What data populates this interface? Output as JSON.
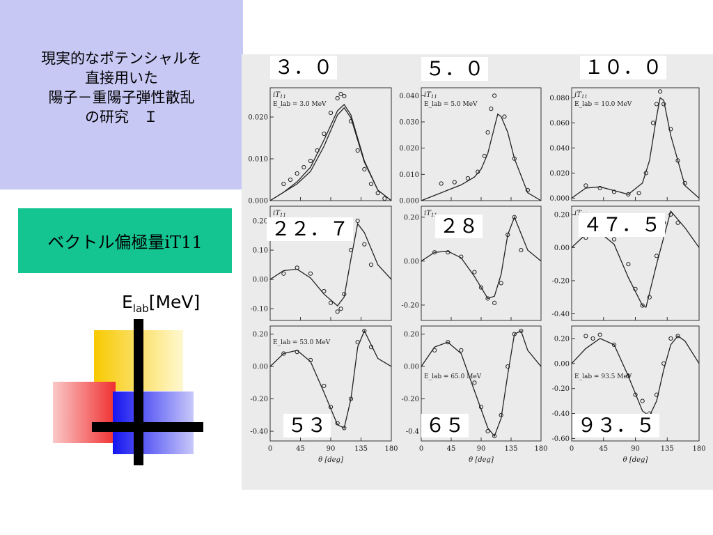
{
  "title": {
    "lines": [
      "現実的なポテンシャルを",
      "直接用いた",
      "陽子－重陽子弾性散乱",
      "の研究　Ｉ"
    ]
  },
  "subtitle": "ベクトル偏極量iT11",
  "energy_axis": {
    "symbol": "E",
    "sub": "lab",
    "unit": "[MeV]"
  },
  "panel_labels": [
    "３．０",
    "５．０",
    "１０．０",
    "２２．７",
    "２８",
    "４７．５",
    "５３",
    "６５",
    "９３．５"
  ],
  "figure_text": {
    "ylabel": "iT",
    "ylabel_sub": "11",
    "xlabel": "θ [deg]",
    "x_ticks": [
      "0",
      "45",
      "90",
      "135",
      "180"
    ],
    "insets": [
      "E_lab = 3.0 MeV",
      "E_lab = 5.0 MeV",
      "E_lab = 10.0 MeV",
      "E_lab = 53.0 MeV",
      "E_lab = 65.0 MeV",
      "E_lab = 93.5 MeV"
    ],
    "row_y_ticks": [
      [
        [
          "0.020",
          "0.010",
          "0.000"
        ],
        [
          "0.040",
          "0.030",
          "0.020",
          "0.010",
          "0.000"
        ],
        [
          "0.080",
          "0.060",
          "0.040",
          "0.020",
          "0.000"
        ]
      ],
      [
        [
          "0.20",
          "0.10",
          "0.00",
          "-0.10"
        ],
        [
          "0.20",
          "0.00",
          "-0.20"
        ],
        [
          "0.20",
          "0.00",
          "-0.20",
          "-0.40"
        ]
      ],
      [
        [
          "0.20",
          "0.00",
          "-0.20",
          "-0.40"
        ],
        [
          "0.20",
          "0.00",
          "-0.20",
          "-0.4"
        ],
        [
          "0.20",
          "0.00",
          "-0.20",
          "-0.40",
          "-0.60"
        ]
      ]
    ]
  },
  "colors": {
    "title_bg": "#c8c8f5",
    "subtitle_bg": "#14c591",
    "scan_bg": "#ebebeb",
    "deco_yellow": "#f7c900",
    "deco_red": "#f03030",
    "deco_blue": "#1414f0",
    "deco_bar": "#000000"
  },
  "chart_data": [
    {
      "type": "scatter",
      "energy_MeV": 3.0,
      "xlim": [
        0,
        180
      ],
      "ylim": [
        0,
        0.027
      ],
      "y_ticks": [
        0.0,
        0.01,
        0.02
      ],
      "series": [
        {
          "name": "",
          "x": [
            20,
            30,
            40,
            50,
            60,
            70,
            80,
            90,
            100,
            105,
            110,
            120,
            130,
            140,
            150,
            160,
            170
          ],
          "y": [
            0.004,
            0.005,
            0.0065,
            0.008,
            0.0095,
            0.012,
            0.016,
            0.021,
            0.0245,
            0.0255,
            0.025,
            0.019,
            0.012,
            0.0075,
            0.004,
            0.0018,
            0.0005
          ]
        }
      ],
      "curves": [
        {
          "x": [
            0,
            20,
            40,
            60,
            80,
            100,
            110,
            120,
            140,
            160,
            180
          ],
          "y": [
            0,
            0.002,
            0.0045,
            0.008,
            0.0145,
            0.0215,
            0.023,
            0.0205,
            0.0095,
            0.0025,
            0
          ]
        },
        {
          "x": [
            0,
            20,
            40,
            60,
            80,
            100,
            110,
            120,
            140,
            160,
            180
          ],
          "y": [
            0,
            0.002,
            0.004,
            0.007,
            0.013,
            0.0205,
            0.0222,
            0.0198,
            0.0092,
            0.0025,
            0
          ]
        }
      ]
    },
    {
      "type": "scatter",
      "energy_MeV": 5.0,
      "xlim": [
        0,
        180
      ],
      "ylim": [
        0,
        0.043
      ],
      "y_ticks": [
        0.0,
        0.01,
        0.02,
        0.03,
        0.04
      ],
      "series": [
        {
          "name": "",
          "x": [
            30,
            50,
            70,
            85,
            95,
            100,
            105,
            110,
            125,
            140,
            160
          ],
          "y": [
            0.0065,
            0.007,
            0.0085,
            0.011,
            0.017,
            0.026,
            0.035,
            0.04,
            0.032,
            0.016,
            0.004
          ]
        }
      ],
      "curves": [
        {
          "x": [
            0,
            20,
            40,
            60,
            80,
            90,
            100,
            110,
            115,
            120,
            130,
            140,
            160,
            180
          ],
          "y": [
            0,
            0.002,
            0.004,
            0.006,
            0.009,
            0.012,
            0.018,
            0.028,
            0.033,
            0.032,
            0.026,
            0.016,
            0.003,
            0
          ]
        }
      ]
    },
    {
      "type": "scatter",
      "energy_MeV": 10.0,
      "xlim": [
        0,
        180
      ],
      "ylim": [
        -0.002,
        0.088
      ],
      "y_ticks": [
        0.0,
        0.02,
        0.04,
        0.06,
        0.08
      ],
      "series": [
        {
          "name": "",
          "x": [
            20,
            40,
            60,
            80,
            95,
            105,
            115,
            120,
            125,
            130,
            140,
            150,
            160
          ],
          "y": [
            0.01,
            0.008,
            0.005,
            0.003,
            0.004,
            0.02,
            0.06,
            0.075,
            0.085,
            0.075,
            0.055,
            0.03,
            0.012
          ]
        }
      ],
      "curves": [
        {
          "x": [
            0,
            20,
            40,
            60,
            80,
            100,
            110,
            120,
            125,
            130,
            140,
            160,
            180
          ],
          "y": [
            0,
            0.008,
            0.009,
            0.006,
            0.003,
            0.012,
            0.03,
            0.065,
            0.08,
            0.078,
            0.05,
            0.01,
            0
          ]
        }
      ]
    },
    {
      "type": "scatter",
      "energy_MeV": 22.7,
      "xlim": [
        0,
        180
      ],
      "ylim": [
        -0.14,
        0.25
      ],
      "y_ticks": [
        -0.1,
        0.0,
        0.1,
        0.2
      ],
      "series": [
        {
          "name": "",
          "x": [
            20,
            40,
            60,
            80,
            90,
            100,
            105,
            110,
            120,
            130,
            140,
            150
          ],
          "y": [
            0.02,
            0.04,
            0.02,
            -0.04,
            -0.08,
            -0.11,
            -0.1,
            -0.05,
            0.1,
            0.2,
            0.12,
            0.05
          ]
        }
      ],
      "curves": [
        {
          "x": [
            0,
            20,
            40,
            60,
            80,
            100,
            110,
            120,
            130,
            140,
            160,
            180
          ],
          "y": [
            0,
            0.03,
            0.035,
            0.005,
            -0.05,
            -0.09,
            -0.06,
            0.07,
            0.19,
            0.16,
            0.05,
            0
          ]
        }
      ]
    },
    {
      "type": "scatter",
      "energy_MeV": 28,
      "xlim": [
        0,
        180
      ],
      "ylim": [
        -0.27,
        0.25
      ],
      "y_ticks": [
        -0.2,
        0.0,
        0.2
      ],
      "series": [
        {
          "name": "",
          "x": [
            20,
            40,
            60,
            80,
            90,
            100,
            110,
            120,
            130,
            140,
            150
          ],
          "y": [
            0.04,
            0.04,
            0.02,
            -0.05,
            -0.12,
            -0.17,
            -0.19,
            -0.1,
            0.12,
            0.2,
            0.05
          ]
        }
      ],
      "curves": [
        {
          "x": [
            0,
            20,
            40,
            60,
            80,
            100,
            110,
            120,
            130,
            140,
            160,
            180
          ],
          "y": [
            0,
            0.04,
            0.045,
            0.015,
            -0.07,
            -0.17,
            -0.16,
            -0.06,
            0.12,
            0.2,
            0.05,
            0
          ]
        }
      ]
    },
    {
      "type": "scatter",
      "energy_MeV": 47.5,
      "xlim": [
        0,
        180
      ],
      "ylim": [
        -0.44,
        0.25
      ],
      "y_ticks": [
        -0.4,
        -0.2,
        0.0,
        0.2
      ],
      "series": [
        {
          "name": "",
          "x": [
            20,
            40,
            60,
            80,
            90,
            100,
            110,
            120,
            130,
            140,
            150
          ],
          "y": [
            0.06,
            0.08,
            0.05,
            -0.1,
            -0.25,
            -0.35,
            -0.3,
            -0.05,
            0.15,
            0.2,
            0.15
          ]
        }
      ],
      "curves": [
        {
          "x": [
            0,
            20,
            40,
            60,
            80,
            100,
            105,
            120,
            140,
            160,
            180
          ],
          "y": [
            0,
            0.08,
            0.09,
            0.02,
            -0.18,
            -0.35,
            -0.36,
            -0.1,
            0.22,
            0.12,
            0
          ]
        }
      ]
    },
    {
      "type": "scatter",
      "energy_MeV": 53.0,
      "xlim": [
        0,
        180
      ],
      "ylim": [
        -0.46,
        0.25
      ],
      "y_ticks": [
        -0.4,
        -0.2,
        0.0,
        0.2
      ],
      "series": [
        {
          "name": "",
          "x": [
            20,
            40,
            60,
            80,
            90,
            100,
            110,
            120,
            130,
            140,
            150
          ],
          "y": [
            0.08,
            0.09,
            0.04,
            -0.12,
            -0.25,
            -0.35,
            -0.38,
            -0.2,
            0.15,
            0.22,
            0.12
          ]
        }
      ],
      "curves": [
        {
          "x": [
            0,
            20,
            40,
            60,
            80,
            100,
            110,
            120,
            130,
            140,
            160,
            180
          ],
          "y": [
            0,
            0.08,
            0.1,
            0.03,
            -0.16,
            -0.36,
            -0.38,
            -0.2,
            0.12,
            0.22,
            0.05,
            0
          ]
        }
      ]
    },
    {
      "type": "scatter",
      "energy_MeV": 65.0,
      "xlim": [
        0,
        180
      ],
      "ylim": [
        -0.46,
        0.25
      ],
      "y_ticks": [
        -0.4,
        -0.2,
        0.0,
        0.2
      ],
      "series": [
        {
          "name": "",
          "x": [
            20,
            40,
            60,
            80,
            90,
            100,
            110,
            120,
            130,
            140,
            150
          ],
          "y": [
            0.1,
            0.15,
            0.1,
            -0.1,
            -0.25,
            -0.4,
            -0.43,
            -0.3,
            0.0,
            0.2,
            0.22
          ]
        }
      ],
      "curves": [
        {
          "x": [
            0,
            20,
            40,
            60,
            80,
            100,
            110,
            120,
            130,
            140,
            150,
            160,
            180
          ],
          "y": [
            0,
            0.12,
            0.15,
            0.08,
            -0.15,
            -0.38,
            -0.43,
            -0.32,
            -0.05,
            0.2,
            0.22,
            0.1,
            0
          ]
        }
      ]
    },
    {
      "type": "scatter",
      "energy_MeV": 93.5,
      "xlim": [
        0,
        180
      ],
      "ylim": [
        -0.62,
        0.3
      ],
      "y_ticks": [
        -0.6,
        -0.4,
        -0.2,
        0.0,
        0.2
      ],
      "series": [
        {
          "name": "",
          "x": [
            20,
            30,
            40,
            60,
            80,
            90,
            100,
            110,
            120,
            130,
            140,
            150
          ],
          "y": [
            0.22,
            0.2,
            0.23,
            0.15,
            -0.1,
            -0.25,
            -0.3,
            -0.4,
            -0.25,
            0.0,
            0.2,
            0.22
          ]
        }
      ],
      "curves": [
        {
          "x": [
            0,
            20,
            40,
            60,
            80,
            100,
            110,
            120,
            130,
            140,
            150,
            160,
            180
          ],
          "y": [
            0,
            0.12,
            0.2,
            0.15,
            -0.1,
            -0.38,
            -0.42,
            -0.3,
            -0.05,
            0.15,
            0.22,
            0.18,
            0
          ]
        }
      ]
    }
  ]
}
